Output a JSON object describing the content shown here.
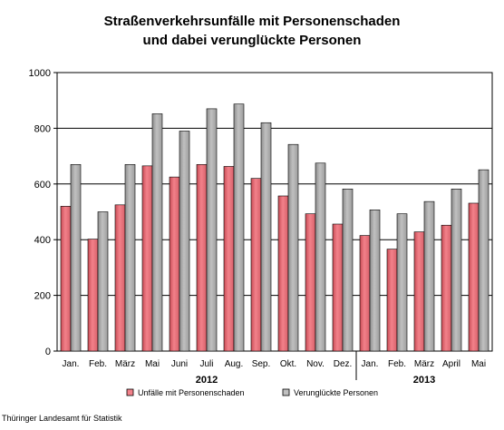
{
  "chart_data": {
    "type": "bar",
    "title": [
      "Straßenverkehrsunfälle mit Personenschaden",
      "und dabei verunglückte Personen"
    ],
    "categories": [
      "Jan.",
      "Feb.",
      "März",
      "Mai",
      "Juni",
      "Juli",
      "Aug.",
      "Sep.",
      "Okt.",
      "Nov.",
      "Dez.",
      "Jan.",
      "Feb.",
      "März",
      "April",
      "Mai"
    ],
    "year_groups": [
      {
        "label": "2012",
        "from": 0,
        "to": 10
      },
      {
        "label": "2013",
        "from": 11,
        "to": 15
      }
    ],
    "series": [
      {
        "name": "Unfälle mit Personenschaden",
        "color": "#f2818a",
        "values": [
          520,
          402,
          525,
          665,
          625,
          670,
          663,
          620,
          557,
          493,
          456,
          415,
          366,
          428,
          452,
          531
        ]
      },
      {
        "name": "Verunglückte Personen",
        "color": "#c0c0c0",
        "values": [
          670,
          500,
          670,
          852,
          790,
          870,
          887,
          820,
          742,
          675,
          582,
          507,
          493,
          537,
          582,
          651
        ]
      }
    ],
    "yticks": [
      0,
      200,
      400,
      600,
      800,
      1000
    ],
    "ylim": [
      0,
      1000
    ],
    "grid": true,
    "legend_position": "bottom"
  },
  "footer": {
    "source": "Thüringer Landesamt für Statistik"
  }
}
